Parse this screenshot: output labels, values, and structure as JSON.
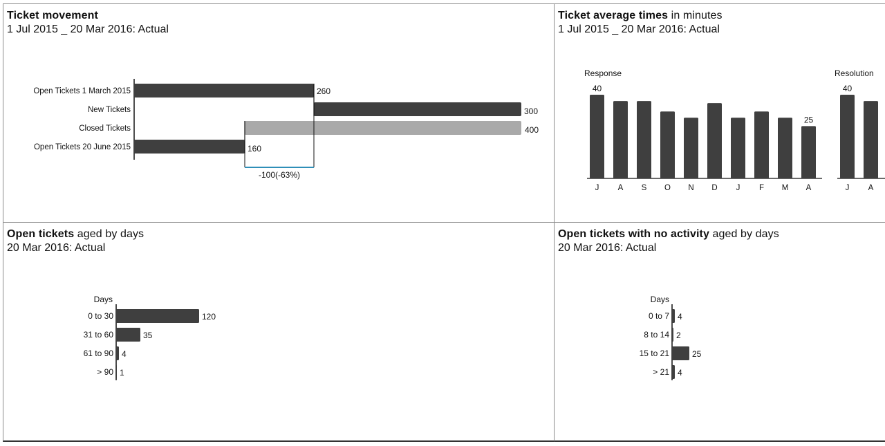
{
  "panels": {
    "movement": {
      "title_bold": "Ticket movement",
      "title_rest": "",
      "subtitle": "1 Jul 2015 _ 20 Mar 2016: Actual"
    },
    "avg_times": {
      "title_bold": "Ticket average times",
      "title_rest": " in minutes",
      "subtitle": "1 Jul 2015 _ 20 Mar 2016: Actual"
    },
    "aged": {
      "title_bold": "Open tickets",
      "title_rest": " aged by days",
      "subtitle": "20 Mar 2016: Actual"
    },
    "no_activity": {
      "title_bold": "Open tickets with no activity",
      "title_rest": " aged by days",
      "subtitle": "20 Mar 2016: Actual"
    }
  },
  "colors": {
    "bar": "#3f3f3f",
    "closed": "#a9a9a9",
    "delta_line": "#2f8fb8"
  },
  "chart_data": [
    {
      "id": "ticket-movement",
      "type": "bar",
      "orientation": "horizontal",
      "variant": "waterfall",
      "categories": [
        "Open Tickets 1 March 2015",
        "New Tickets",
        "Closed Tickets",
        "Open Tickets 20 June 2015"
      ],
      "values": [
        260,
        300,
        400,
        160
      ],
      "kinds": [
        "total",
        "increase",
        "decrease",
        "total"
      ],
      "value_labels": [
        "260",
        "300",
        "400",
        "160"
      ],
      "delta_label": "-100(-63%)",
      "xlim": [
        0,
        560
      ]
    },
    {
      "id": "ticket-average-times",
      "type": "bar",
      "groups": [
        {
          "name": "Response",
          "categories": [
            "J",
            "A",
            "S",
            "O",
            "N",
            "D",
            "J",
            "F",
            "M",
            "A"
          ],
          "values": [
            40,
            37,
            37,
            32,
            29,
            36,
            29,
            32,
            29,
            25
          ],
          "labels": [
            "40",
            "",
            "",
            "",
            "",
            "",
            "",
            "",
            "",
            "25"
          ]
        },
        {
          "name": "Resolution",
          "categories": [
            "J",
            "A"
          ],
          "values": [
            40,
            37
          ],
          "labels": [
            "40",
            ""
          ]
        }
      ],
      "ylim": [
        0,
        40
      ]
    },
    {
      "id": "open-tickets-aged",
      "type": "bar",
      "orientation": "horizontal",
      "axis_title": "Days",
      "categories": [
        "0 to 30",
        "31 to 60",
        "61 to 90",
        "> 90"
      ],
      "values": [
        120,
        35,
        4,
        1
      ],
      "value_labels": [
        "120",
        "35",
        "4",
        "1"
      ],
      "xlim": [
        0,
        120
      ]
    },
    {
      "id": "no-activity-aged",
      "type": "bar",
      "orientation": "horizontal",
      "axis_title": "Days",
      "categories": [
        "0 to 7",
        "8 to 14",
        "15 to 21",
        "> 21"
      ],
      "values": [
        4,
        2,
        25,
        4
      ],
      "value_labels": [
        "4",
        "2",
        "25",
        "4"
      ],
      "xlim": [
        0,
        25
      ]
    }
  ]
}
